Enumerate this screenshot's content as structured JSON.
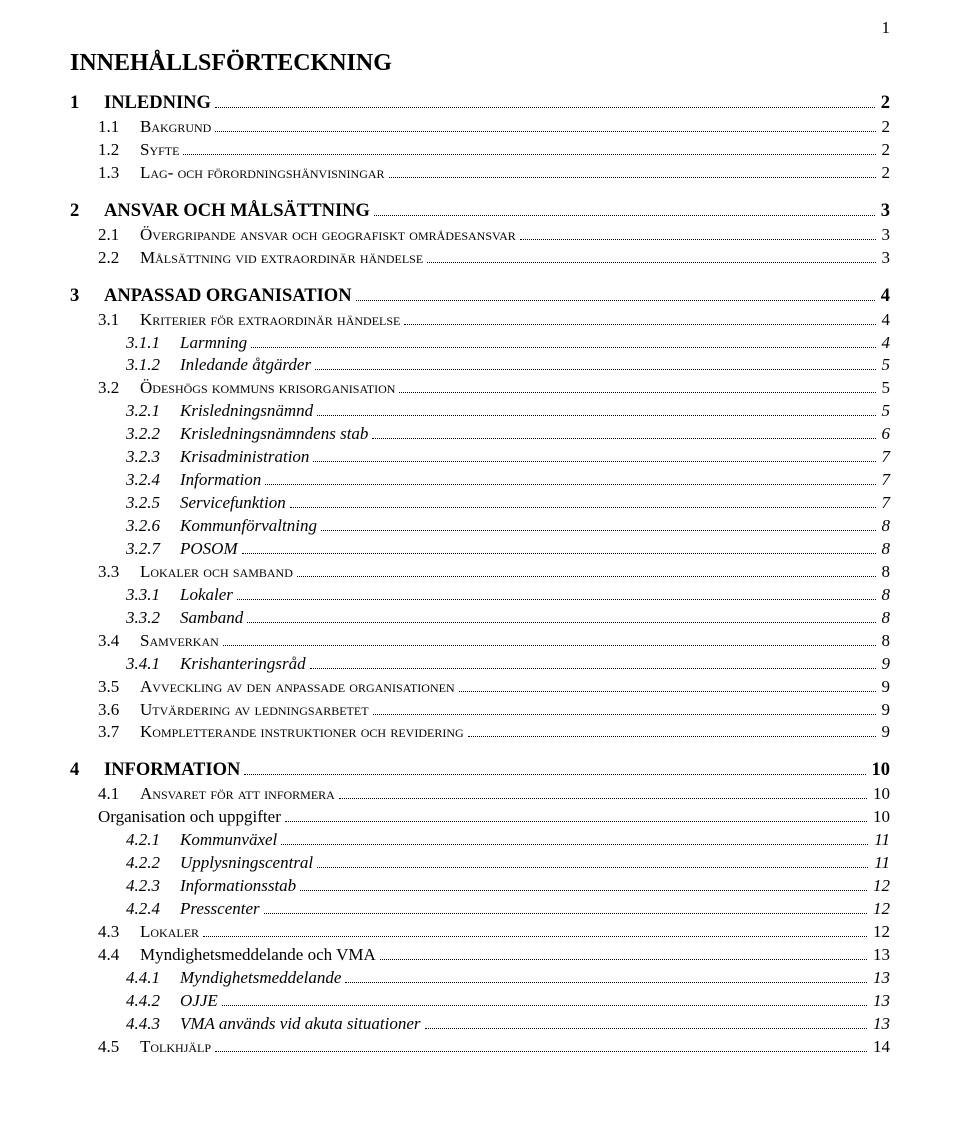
{
  "page_number": "1",
  "title": "INNEHÅLLSFÖRTECKNING",
  "toc": [
    {
      "level": 1,
      "num": "1",
      "label": "INLEDNING",
      "page": "2"
    },
    {
      "level": 2,
      "num": "1.1",
      "label": "Bakgrund",
      "page": "2"
    },
    {
      "level": 2,
      "num": "1.2",
      "label": "Syfte",
      "page": "2"
    },
    {
      "level": 2,
      "num": "1.3",
      "label": "Lag- och förordningshänvisningar",
      "page": "2"
    },
    {
      "level": 1,
      "num": "2",
      "label": "ANSVAR OCH MÅLSÄTTNING",
      "page": "3"
    },
    {
      "level": 2,
      "num": "2.1",
      "label": "Övergripande ansvar och geografiskt områdesansvar",
      "page": "3"
    },
    {
      "level": 2,
      "num": "2.2",
      "label": "Målsättning vid extraordinär händelse",
      "page": "3"
    },
    {
      "level": 1,
      "num": "3",
      "label": "ANPASSAD ORGANISATION",
      "page": "4"
    },
    {
      "level": 2,
      "num": "3.1",
      "label": "Kriterier för extraordinär händelse",
      "page": "4"
    },
    {
      "level": 3,
      "num": "3.1.1",
      "label": "Larmning",
      "page": "4"
    },
    {
      "level": 3,
      "num": "3.1.2",
      "label": "Inledande åtgärder",
      "page": "5"
    },
    {
      "level": 2,
      "num": "3.2",
      "label": "Ödeshögs kommuns krisorganisation",
      "page": "5"
    },
    {
      "level": 3,
      "num": "3.2.1",
      "label": "Krisledningsnämnd",
      "page": "5"
    },
    {
      "level": 3,
      "num": "3.2.2",
      "label": "Krisledningsnämndens stab",
      "page": "6"
    },
    {
      "level": 3,
      "num": "3.2.3",
      "label": "Krisadministration",
      "page": "7"
    },
    {
      "level": 3,
      "num": "3.2.4",
      "label": "Information",
      "page": "7"
    },
    {
      "level": 3,
      "num": "3.2.5",
      "label": "Servicefunktion",
      "page": "7"
    },
    {
      "level": 3,
      "num": "3.2.6",
      "label": "Kommunförvaltning",
      "page": "8"
    },
    {
      "level": 3,
      "num": "3.2.7",
      "label": "POSOM",
      "page": "8"
    },
    {
      "level": 2,
      "num": "3.3",
      "label": "Lokaler och samband",
      "page": "8"
    },
    {
      "level": 3,
      "num": "3.3.1",
      "label": "Lokaler",
      "page": "8"
    },
    {
      "level": 3,
      "num": "3.3.2",
      "label": "Samband",
      "page": "8"
    },
    {
      "level": 2,
      "num": "3.4",
      "label": "Samverkan",
      "page": "8"
    },
    {
      "level": 3,
      "num": "3.4.1",
      "label": "Krishanteringsråd",
      "page": "9"
    },
    {
      "level": 2,
      "num": "3.5",
      "label": "Avveckling av den anpassade organisationen",
      "page": "9"
    },
    {
      "level": 2,
      "num": "3.6",
      "label": "Utvärdering av ledningsarbetet",
      "page": "9"
    },
    {
      "level": 2,
      "num": "3.7",
      "label": "Kompletterande instruktioner och revidering",
      "page": "9"
    },
    {
      "level": 1,
      "num": "4",
      "label": "INFORMATION",
      "page": "10"
    },
    {
      "level": 2,
      "num": "4.1",
      "label": "Ansvaret för att informera",
      "page": "10"
    },
    {
      "level": 2,
      "num": "",
      "label": "Organisation och uppgifter",
      "page": "10",
      "plain": true
    },
    {
      "level": 3,
      "num": "4.2.1",
      "label": "Kommunväxel",
      "page": "11"
    },
    {
      "level": 3,
      "num": "4.2.2",
      "label": "Upplysningscentral",
      "page": "11"
    },
    {
      "level": 3,
      "num": "4.2.3",
      "label": "Informationsstab",
      "page": "12"
    },
    {
      "level": 3,
      "num": "4.2.4",
      "label": "Presscenter",
      "page": "12"
    },
    {
      "level": 2,
      "num": "4.3",
      "label": "Lokaler",
      "page": "12"
    },
    {
      "level": 2,
      "num": "4.4",
      "label": "Myndighetsmeddelande och VMA",
      "page": "13",
      "plain": true
    },
    {
      "level": 3,
      "num": "4.4.1",
      "label": "Myndighetsmeddelande",
      "page": "13"
    },
    {
      "level": 3,
      "num": "4.4.2",
      "label": "OJJE",
      "page": "13"
    },
    {
      "level": 3,
      "num": "4.4.3",
      "label": "VMA används vid akuta situationer",
      "page": "13"
    },
    {
      "level": 2,
      "num": "4.5",
      "label": "Tolkhjälp",
      "page": "14"
    }
  ]
}
